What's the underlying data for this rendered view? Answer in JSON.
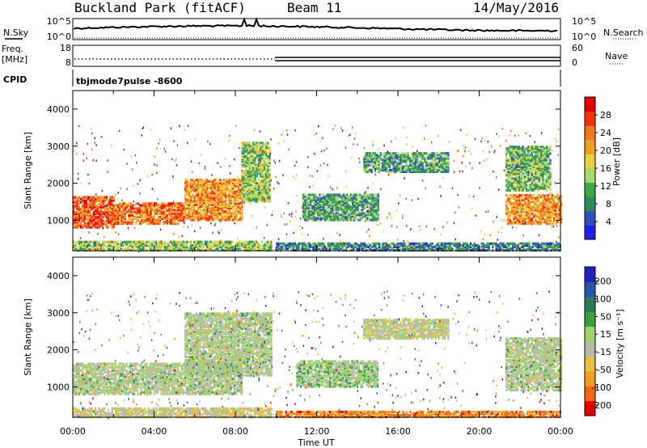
{
  "header": {
    "station": "Buckland Park (fitACF)",
    "beam": "Beam 11",
    "date": "14/May/2016"
  },
  "summary": {
    "nsky_label": "N.Sky",
    "nsearch_label": "N.Search",
    "freq_label_1": "Freq.",
    "freq_label_2": "[MHz]",
    "nave_label": "Nave",
    "cpid_label": "CPID",
    "noise_ticks": [
      "10^5",
      "10^0"
    ],
    "freq_ticks": [
      "18",
      "8"
    ],
    "nave_ticks": [
      "60",
      "0"
    ],
    "cpid_value": "tbjmode7pulse -8600"
  },
  "colors": {
    "power": [
      "#1f1fe6",
      "#2e4fb8",
      "#2e8a5a",
      "#3ca64a",
      "#a8d96c",
      "#e8d040",
      "#f0a020",
      "#f07818",
      "#ee3010",
      "#e60000"
    ],
    "velocity": [
      "#2222bb",
      "#2255aa",
      "#2e7a5a",
      "#3ca03c",
      "#9ed26c",
      "#b8b8b0",
      "#e8c040",
      "#f0a020",
      "#f06818",
      "#e60000"
    ]
  },
  "chart_data": [
    {
      "type": "heatmap",
      "name": "power-panel",
      "ylabel": "Slant Range [km]",
      "xlabel": "Time UT",
      "xlim": [
        "00:00",
        "00:00"
      ],
      "ylim": [
        180,
        4500
      ],
      "xticks": [
        "00:00",
        "04:00",
        "08:00",
        "12:00",
        "16:00",
        "20:00",
        "00:00"
      ],
      "yticks": [
        "1000",
        "2000",
        "3000",
        "4000"
      ],
      "colorbar": {
        "label": "Power [dB]",
        "ticks": [
          "4",
          "8",
          "12",
          "16",
          "20",
          "24",
          "28"
        ]
      },
      "regions": [
        {
          "t0": 0.0,
          "t1": 2.0,
          "r0": 800,
          "r1": 1650,
          "v": 26
        },
        {
          "t0": 2.0,
          "t1": 5.5,
          "r0": 900,
          "r1": 1450,
          "v": 24
        },
        {
          "t0": 5.5,
          "t1": 8.3,
          "r0": 1000,
          "r1": 2100,
          "v": 22
        },
        {
          "t0": 8.3,
          "t1": 9.7,
          "r0": 1500,
          "r1": 3100,
          "v": 14
        },
        {
          "t0": 0.0,
          "t1": 9.8,
          "r0": 180,
          "r1": 450,
          "v": 14
        },
        {
          "t0": 10.0,
          "t1": 24.0,
          "r0": 180,
          "r1": 400,
          "v": 8
        },
        {
          "t0": 11.3,
          "t1": 15.0,
          "r0": 1000,
          "r1": 1700,
          "v": 10
        },
        {
          "t0": 14.3,
          "t1": 18.5,
          "r0": 2300,
          "r1": 2800,
          "v": 10
        },
        {
          "t0": 21.3,
          "t1": 24.0,
          "r0": 900,
          "r1": 1700,
          "v": 22
        },
        {
          "t0": 21.3,
          "t1": 23.5,
          "r0": 1800,
          "r1": 3000,
          "v": 12
        }
      ]
    },
    {
      "type": "heatmap",
      "name": "velocity-panel",
      "ylabel": "Slant Range [km]",
      "xlabel": "Time UT",
      "xlim": [
        "00:00",
        "00:00"
      ],
      "ylim": [
        180,
        4500
      ],
      "xticks": [
        "00:00",
        "04:00",
        "08:00",
        "12:00",
        "16:00",
        "20:00",
        "00:00"
      ],
      "yticks": [
        "1000",
        "2000",
        "3000",
        "4000"
      ],
      "colorbar": {
        "label": "Velocity [m s⁻¹]",
        "ticks": [
          "200",
          "100",
          "50",
          "15",
          "-15",
          "-50",
          "-100",
          "-200"
        ]
      },
      "regions": [
        {
          "t0": 0.0,
          "t1": 8.3,
          "r0": 800,
          "r1": 1650,
          "v": 0
        },
        {
          "t0": 5.5,
          "t1": 9.8,
          "r0": 1300,
          "r1": 3000,
          "v": 0
        },
        {
          "t0": 0.0,
          "t1": 9.8,
          "r0": 180,
          "r1": 450,
          "v": -40
        },
        {
          "t0": 10.0,
          "t1": 24.0,
          "r0": 180,
          "r1": 350,
          "v": -150
        },
        {
          "t0": 11.0,
          "t1": 15.0,
          "r0": 1000,
          "r1": 1700,
          "v": 20
        },
        {
          "t0": 14.3,
          "t1": 18.5,
          "r0": 2300,
          "r1": 2800,
          "v": -20
        },
        {
          "t0": 21.3,
          "t1": 24.0,
          "r0": 900,
          "r1": 2300,
          "v": 0
        }
      ]
    }
  ],
  "xlabel": "Time UT"
}
